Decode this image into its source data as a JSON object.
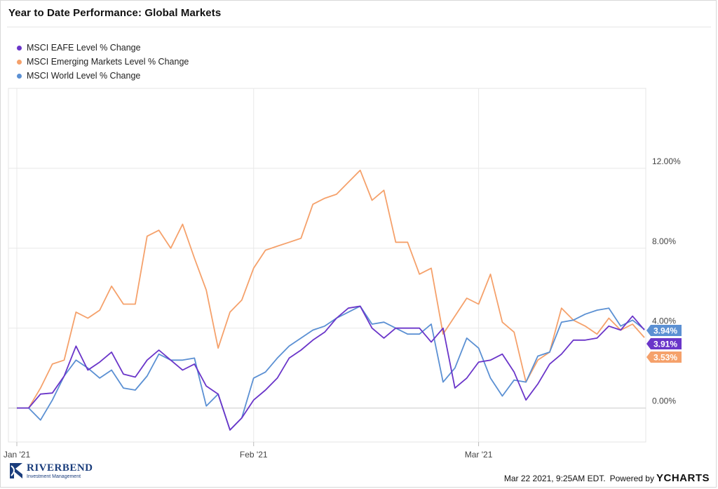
{
  "title": "Year to Date Performance: Global Markets",
  "footer": {
    "timestamp": "Mar 22 2021, 9:25AM EDT.",
    "powered_by": "Powered by",
    "brand": "YCHARTS"
  },
  "logo": {
    "name": "RIVERBEND",
    "subtitle": "Investment Management"
  },
  "chart_data": {
    "type": "line",
    "x_tick_labels": [
      "Jan '21",
      "Feb '21",
      "Mar '21"
    ],
    "y_tick_labels": [
      "0.00%",
      "4.00%",
      "8.00%",
      "12.00%"
    ],
    "y_ticks": [
      0,
      4,
      8,
      12
    ],
    "ylim": [
      -1.7,
      16
    ],
    "grid": true,
    "legend_position": "top-left",
    "end_labels": [
      "3.94%",
      "3.91%",
      "3.53%"
    ],
    "series": [
      {
        "name": "MSCI EAFE Level % Change",
        "color": "#6a35c9",
        "end_value": 3.91,
        "values": [
          0.0,
          0.0,
          0.7,
          0.75,
          1.6,
          3.1,
          1.9,
          2.3,
          2.8,
          1.7,
          1.55,
          2.4,
          2.9,
          2.4,
          1.9,
          2.2,
          1.1,
          0.7,
          -1.1,
          -0.5,
          0.4,
          0.9,
          1.5,
          2.5,
          2.9,
          3.4,
          3.8,
          4.5,
          5.0,
          5.1,
          4.0,
          3.5,
          4.0,
          4.0,
          4.0,
          3.3,
          4.0,
          1.0,
          1.5,
          2.3,
          2.4,
          2.7,
          1.8,
          0.4,
          1.2,
          2.2,
          2.7,
          3.4,
          3.4,
          3.5,
          4.1,
          3.9,
          4.6,
          3.91
        ]
      },
      {
        "name": "MSCI Emerging Markets Level % Change",
        "color": "#f5a16b",
        "end_value": 3.53,
        "values": [
          0.0,
          0.0,
          1.0,
          2.2,
          2.4,
          4.8,
          4.5,
          4.9,
          6.1,
          5.2,
          5.2,
          8.6,
          8.9,
          8.0,
          9.2,
          7.5,
          5.9,
          3.0,
          4.8,
          5.4,
          7.0,
          7.9,
          8.1,
          8.3,
          8.5,
          10.2,
          10.5,
          10.7,
          11.3,
          11.9,
          10.4,
          10.9,
          8.3,
          8.3,
          6.7,
          7.0,
          3.7,
          4.6,
          5.5,
          5.2,
          6.7,
          4.3,
          3.8,
          1.3,
          2.4,
          2.8,
          5.0,
          4.4,
          4.1,
          3.7,
          4.5,
          3.9,
          4.2,
          3.53
        ]
      },
      {
        "name": "MSCI World Level % Change",
        "color": "#5b90d3",
        "end_value": 3.94,
        "values": [
          0.0,
          0.0,
          -0.6,
          0.4,
          1.6,
          2.4,
          2.0,
          1.5,
          1.9,
          1.0,
          0.9,
          1.6,
          2.7,
          2.4,
          2.4,
          2.5,
          0.1,
          0.7,
          -1.1,
          -0.5,
          1.5,
          1.8,
          2.5,
          3.1,
          3.5,
          3.9,
          4.1,
          4.5,
          4.8,
          5.1,
          4.2,
          4.3,
          4.0,
          3.7,
          3.7,
          4.2,
          1.3,
          2.0,
          3.5,
          3.0,
          1.5,
          0.6,
          1.4,
          1.3,
          2.6,
          2.8,
          4.3,
          4.4,
          4.7,
          4.9,
          5.0,
          4.1,
          4.4,
          3.94
        ]
      }
    ]
  }
}
